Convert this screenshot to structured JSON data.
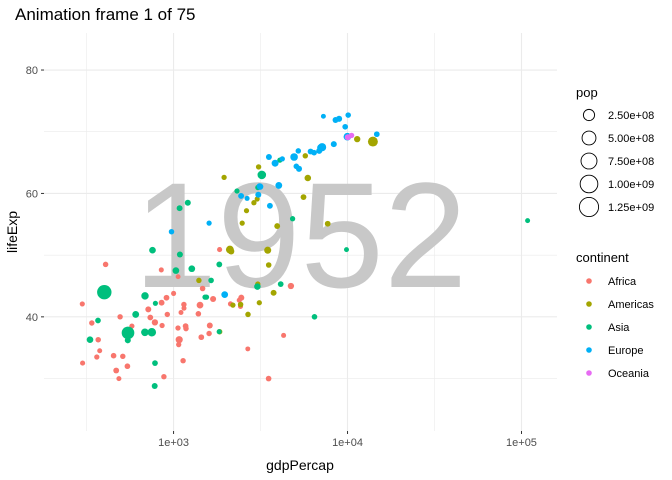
{
  "chart_data": {
    "type": "scatter",
    "title": "Animation frame 1 of 75",
    "xlabel": "gdpPercap",
    "ylabel": "lifeExp",
    "x_scale": "log10",
    "xlim": [
      180,
      160000
    ],
    "ylim": [
      21.5,
      86
    ],
    "x_ticks": [
      {
        "value": 1000,
        "label": "1e+03"
      },
      {
        "value": 10000,
        "label": "1e+04"
      },
      {
        "value": 100000,
        "label": "1e+05"
      }
    ],
    "y_ticks": [
      {
        "value": 40,
        "label": "40"
      },
      {
        "value": 60,
        "label": "60"
      },
      {
        "value": 80,
        "label": "80"
      }
    ],
    "grid": true,
    "background_text": "1952",
    "legend_position": "right",
    "size_legend": {
      "title": "pop",
      "entries": [
        {
          "value": 250000000,
          "label": "2.50e+08"
        },
        {
          "value": 500000000,
          "label": "5.00e+08"
        },
        {
          "value": 750000000,
          "label": "7.50e+08"
        },
        {
          "value": 1000000000,
          "label": "1.00e+09"
        },
        {
          "value": 1250000000,
          "label": "1.25e+09"
        }
      ]
    },
    "color_legend": {
      "title": "continent",
      "entries": [
        {
          "name": "Africa",
          "color": "#F8766D"
        },
        {
          "name": "Americas",
          "color": "#A3A500"
        },
        {
          "name": "Asia",
          "color": "#00BF7D"
        },
        {
          "name": "Europe",
          "color": "#00B0F6"
        },
        {
          "name": "Oceania",
          "color": "#E76BF3"
        }
      ]
    },
    "series": [
      {
        "name": "Africa",
        "color": "#F8766D",
        "points": [
          {
            "x": 2450,
            "y": 43.1,
            "pop": 9300000
          },
          {
            "x": 3520,
            "y": 30.0,
            "pop": 4200000
          },
          {
            "x": 1060,
            "y": 38.2,
            "pop": 1700000
          },
          {
            "x": 850,
            "y": 47.6,
            "pop": 440000
          },
          {
            "x": 543,
            "y": 32.0,
            "pop": 4500000
          },
          {
            "x": 339,
            "y": 39.0,
            "pop": 2400000
          },
          {
            "x": 1173,
            "y": 38.5,
            "pop": 5000000
          },
          {
            "x": 1071,
            "y": 35.5,
            "pop": 1300000
          },
          {
            "x": 1179,
            "y": 38.1,
            "pop": 2700000
          },
          {
            "x": 1103,
            "y": 40.7,
            "pop": 150000
          },
          {
            "x": 781,
            "y": 39.1,
            "pop": 14000000
          },
          {
            "x": 2126,
            "y": 42.1,
            "pop": 850000
          },
          {
            "x": 1389,
            "y": 40.5,
            "pop": 2900000
          },
          {
            "x": 2670,
            "y": 34.8,
            "pop": 63000
          },
          {
            "x": 1419,
            "y": 41.9,
            "pop": 22000000
          },
          {
            "x": 376,
            "y": 34.5,
            "pop": 216000
          },
          {
            "x": 362,
            "y": 33.5,
            "pop": 1400000
          },
          {
            "x": 4293,
            "y": 37.0,
            "pop": 420000
          },
          {
            "x": 485,
            "y": 30.0,
            "pop": 280000
          },
          {
            "x": 911,
            "y": 43.1,
            "pop": 5600000
          },
          {
            "x": 511,
            "y": 33.6,
            "pop": 2700000
          },
          {
            "x": 300,
            "y": 32.5,
            "pop": 580000
          },
          {
            "x": 854,
            "y": 42.3,
            "pop": 6500000
          },
          {
            "x": 299,
            "y": 42.1,
            "pop": 750000
          },
          {
            "x": 576,
            "y": 38.5,
            "pop": 860000
          },
          {
            "x": 2388,
            "y": 42.7,
            "pop": 1000000
          },
          {
            "x": 1443,
            "y": 36.7,
            "pop": 4800000
          },
          {
            "x": 369,
            "y": 36.3,
            "pop": 2900000
          },
          {
            "x": 452,
            "y": 33.7,
            "pop": 3800000
          },
          {
            "x": 1388,
            "y": 40.5,
            "pop": 1000000
          },
          {
            "x": 1840,
            "y": 50.9,
            "pop": 520000
          },
          {
            "x": 1688,
            "y": 42.9,
            "pop": 9900000
          },
          {
            "x": 468,
            "y": 31.3,
            "pop": 6400000
          },
          {
            "x": 2424,
            "y": 41.7,
            "pop": 490000
          },
          {
            "x": 761,
            "y": 37.4,
            "pop": 3400000
          },
          {
            "x": 1077,
            "y": 36.3,
            "pop": 33000000
          },
          {
            "x": 493,
            "y": 40.0,
            "pop": 2500000
          },
          {
            "x": 1062,
            "y": 46.5,
            "pop": 60000
          },
          {
            "x": 1601,
            "y": 37.3,
            "pop": 2800000
          },
          {
            "x": 880,
            "y": 30.3,
            "pop": 2100000
          },
          {
            "x": 1135,
            "y": 32.9,
            "pop": 2500000
          },
          {
            "x": 4725,
            "y": 45.0,
            "pop": 14000000
          },
          {
            "x": 1615,
            "y": 38.6,
            "pop": 8500000
          },
          {
            "x": 1148,
            "y": 41.4,
            "pop": 290000
          },
          {
            "x": 716,
            "y": 41.2,
            "pop": 8300000
          },
          {
            "x": 859,
            "y": 38.6,
            "pop": 1200000
          },
          {
            "x": 1468,
            "y": 44.6,
            "pop": 3600000
          },
          {
            "x": 735,
            "y": 39.9,
            "pop": 5800000
          },
          {
            "x": 1147,
            "y": 42.0,
            "pop": 2700000
          },
          {
            "x": 407,
            "y": 48.5,
            "pop": 3100000
          },
          {
            "x": 1000,
            "y": 43.8,
            "pop": 590000
          },
          {
            "x": 920,
            "y": 40.4,
            "pop": 2200000
          }
        ]
      },
      {
        "name": "Americas",
        "color": "#A3A500",
        "points": [
          {
            "x": 5911,
            "y": 62.5,
            "pop": 18000000
          },
          {
            "x": 2677,
            "y": 40.4,
            "pop": 2900000
          },
          {
            "x": 2109,
            "y": 50.9,
            "pop": 57000000
          },
          {
            "x": 11367,
            "y": 68.8,
            "pop": 14000000
          },
          {
            "x": 3940,
            "y": 54.7,
            "pop": 6400000
          },
          {
            "x": 2144,
            "y": 50.6,
            "pop": 12000000
          },
          {
            "x": 2627,
            "y": 57.2,
            "pop": 930000
          },
          {
            "x": 5587,
            "y": 59.4,
            "pop": 6000000
          },
          {
            "x": 1398,
            "y": 45.9,
            "pop": 2500000
          },
          {
            "x": 3522,
            "y": 48.4,
            "pop": 3500000
          },
          {
            "x": 3048,
            "y": 45.3,
            "pop": 2000000
          },
          {
            "x": 2428,
            "y": 42.0,
            "pop": 3100000
          },
          {
            "x": 1840,
            "y": 37.6,
            "pop": 3200000
          },
          {
            "x": 2194,
            "y": 41.9,
            "pop": 1500000
          },
          {
            "x": 2898,
            "y": 58.5,
            "pop": 1400000
          },
          {
            "x": 3478,
            "y": 50.8,
            "pop": 30000000
          },
          {
            "x": 3112,
            "y": 42.3,
            "pop": 1200000
          },
          {
            "x": 2480,
            "y": 55.2,
            "pop": 940000
          },
          {
            "x": 1953,
            "y": 62.6,
            "pop": 1600000
          },
          {
            "x": 3758,
            "y": 43.9,
            "pop": 8000000
          },
          {
            "x": 3082,
            "y": 64.3,
            "pop": 2200000
          },
          {
            "x": 3024,
            "y": 59.1,
            "pop": 660000
          },
          {
            "x": 13990,
            "y": 68.4,
            "pop": 157000000
          },
          {
            "x": 5717,
            "y": 66.1,
            "pop": 2300000
          },
          {
            "x": 7690,
            "y": 55.1,
            "pop": 5400000
          }
        ]
      },
      {
        "name": "Asia",
        "color": "#00BF7D",
        "points": [
          {
            "x": 779,
            "y": 28.8,
            "pop": 8400000
          },
          {
            "x": 9867,
            "y": 50.9,
            "pop": 120000
          },
          {
            "x": 684,
            "y": 37.5,
            "pop": 46900000
          },
          {
            "x": 368,
            "y": 39.4,
            "pop": 4700000
          },
          {
            "x": 400,
            "y": 44.0,
            "pop": 556000000
          },
          {
            "x": 3054,
            "y": 60.96,
            "pop": 2100000
          },
          {
            "x": 547,
            "y": 37.4,
            "pop": 372000000
          },
          {
            "x": 750,
            "y": 37.5,
            "pop": 82000000
          },
          {
            "x": 3035,
            "y": 44.9,
            "pop": 17000000
          },
          {
            "x": 4130,
            "y": 45.3,
            "pop": 5400000
          },
          {
            "x": 4087,
            "y": 65.4,
            "pop": 1600000
          },
          {
            "x": 3217,
            "y": 63.0,
            "pop": 86000000
          },
          {
            "x": 1547,
            "y": 43.2,
            "pop": 1400000
          },
          {
            "x": 1088,
            "y": 50.1,
            "pop": 8900000
          },
          {
            "x": 1031,
            "y": 47.5,
            "pop": 20900000
          },
          {
            "x": 108382,
            "y": 55.6,
            "pop": 160000
          },
          {
            "x": 4835,
            "y": 55.9,
            "pop": 1400000
          },
          {
            "x": 1831,
            "y": 48.5,
            "pop": 6700000
          },
          {
            "x": 786,
            "y": 42.2,
            "pop": 800000
          },
          {
            "x": 331,
            "y": 36.3,
            "pop": 20000000
          },
          {
            "x": 546,
            "y": 36.2,
            "pop": 9200000
          },
          {
            "x": 1829,
            "y": 37.6,
            "pop": 510000
          },
          {
            "x": 685,
            "y": 43.4,
            "pop": 42000000
          },
          {
            "x": 1273,
            "y": 47.8,
            "pop": 22400000
          },
          {
            "x": 6460,
            "y": 40.0,
            "pop": 4000000
          },
          {
            "x": 2315,
            "y": 60.4,
            "pop": 1100000
          },
          {
            "x": 1083,
            "y": 57.6,
            "pop": 7900000
          },
          {
            "x": 1644,
            "y": 45.9,
            "pop": 3700000
          },
          {
            "x": 1207,
            "y": 58.5,
            "pop": 8600000
          },
          {
            "x": 757,
            "y": 50.8,
            "pop": 21300000
          },
          {
            "x": 606,
            "y": 40.4,
            "pop": 26200000
          },
          {
            "x": 1516,
            "y": 43.2,
            "pop": 1000000
          },
          {
            "x": 782,
            "y": 32.5,
            "pop": 4960000
          }
        ]
      },
      {
        "name": "Europe",
        "color": "#00B0F6",
        "points": [
          {
            "x": 1601,
            "y": 55.2,
            "pop": 1300000
          },
          {
            "x": 6137,
            "y": 66.8,
            "pop": 6900000
          },
          {
            "x": 8343,
            "y": 68.0,
            "pop": 8700000
          },
          {
            "x": 973,
            "y": 53.8,
            "pop": 2800000
          },
          {
            "x": 2444,
            "y": 59.6,
            "pop": 7300000
          },
          {
            "x": 3119,
            "y": 61.2,
            "pop": 3900000
          },
          {
            "x": 6876,
            "y": 66.9,
            "pop": 9100000
          },
          {
            "x": 9692,
            "y": 70.8,
            "pop": 4300000
          },
          {
            "x": 6425,
            "y": 66.6,
            "pop": 4100000
          },
          {
            "x": 7030,
            "y": 67.4,
            "pop": 42500000
          },
          {
            "x": 7144,
            "y": 67.5,
            "pop": 69100000
          },
          {
            "x": 3531,
            "y": 65.9,
            "pop": 7700000
          },
          {
            "x": 5264,
            "y": 64.0,
            "pop": 9500000
          },
          {
            "x": 7268,
            "y": 72.5,
            "pop": 150000
          },
          {
            "x": 5211,
            "y": 66.9,
            "pop": 2950000
          },
          {
            "x": 4931,
            "y": 65.9,
            "pop": 47700000
          },
          {
            "x": 2648,
            "y": 59.2,
            "pop": 410000
          },
          {
            "x": 8941,
            "y": 72.1,
            "pop": 10400000
          },
          {
            "x": 10095,
            "y": 72.7,
            "pop": 3300000
          },
          {
            "x": 4029,
            "y": 61.3,
            "pop": 25700000
          },
          {
            "x": 3068,
            "y": 59.8,
            "pop": 8500000
          },
          {
            "x": 3145,
            "y": 61.1,
            "pop": 16600000
          },
          {
            "x": 3581,
            "y": 58.0,
            "pop": 6900000
          },
          {
            "x": 5074,
            "y": 64.4,
            "pop": 3600000
          },
          {
            "x": 4215,
            "y": 65.6,
            "pop": 1500000
          },
          {
            "x": 3834,
            "y": 64.9,
            "pop": 28500000
          },
          {
            "x": 8528,
            "y": 71.9,
            "pop": 7100000
          },
          {
            "x": 14734,
            "y": 69.6,
            "pop": 4800000
          },
          {
            "x": 1969,
            "y": 43.6,
            "pop": 22200000
          },
          {
            "x": 9980,
            "y": 69.2,
            "pop": 50400000
          }
        ]
      },
      {
        "name": "Oceania",
        "color": "#E76BF3",
        "points": [
          {
            "x": 10040,
            "y": 69.1,
            "pop": 8700000
          },
          {
            "x": 10557,
            "y": 69.4,
            "pop": 1990000
          }
        ]
      }
    ]
  }
}
